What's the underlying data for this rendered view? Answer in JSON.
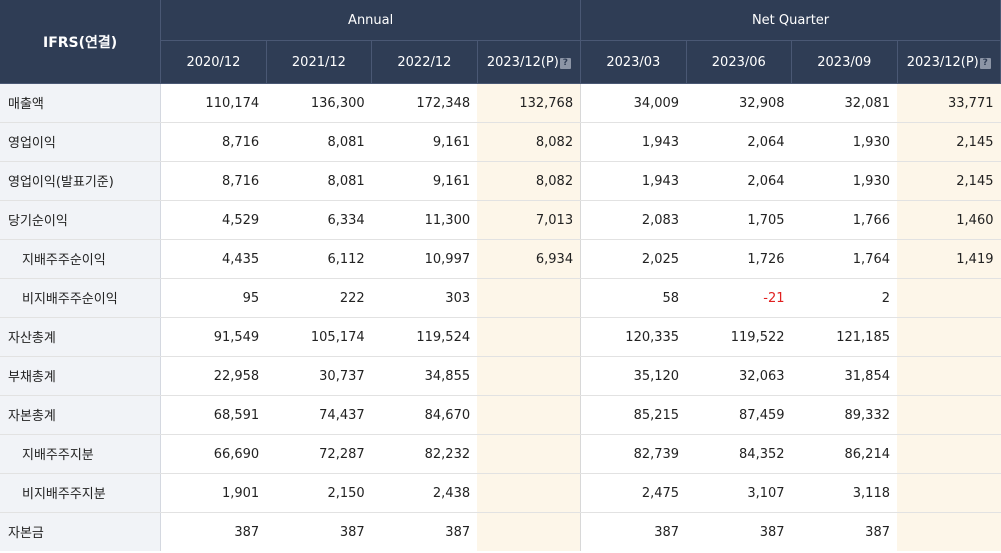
{
  "header": {
    "ifrs_label": "IFRS(연결)",
    "annual_label": "Annual",
    "quarter_label": "Net Quarter",
    "annual_periods": [
      "2020/12",
      "2021/12",
      "2022/12",
      "2023/12(P)"
    ],
    "quarter_periods": [
      "2023/03",
      "2023/06",
      "2023/09",
      "2023/12(P)"
    ],
    "help_icon": "?"
  },
  "rows": [
    {
      "label": "매출액",
      "values": [
        "110,174",
        "136,300",
        "172,348",
        "132,768",
        "34,009",
        "32,908",
        "32,081",
        "33,771"
      ]
    },
    {
      "label": "영업이익",
      "values": [
        "8,716",
        "8,081",
        "9,161",
        "8,082",
        "1,943",
        "2,064",
        "1,930",
        "2,145"
      ]
    },
    {
      "label": "영업이익(발표기준)",
      "values": [
        "8,716",
        "8,081",
        "9,161",
        "8,082",
        "1,943",
        "2,064",
        "1,930",
        "2,145"
      ]
    },
    {
      "label": "당기순이익",
      "values": [
        "4,529",
        "6,334",
        "11,300",
        "7,013",
        "2,083",
        "1,705",
        "1,766",
        "1,460"
      ]
    },
    {
      "label": "지배주주순이익",
      "values": [
        "4,435",
        "6,112",
        "10,997",
        "6,934",
        "2,025",
        "1,726",
        "1,764",
        "1,419"
      ]
    },
    {
      "label": "비지배주주순이익",
      "values": [
        "95",
        "222",
        "303",
        "",
        "58",
        "-21",
        "2",
        ""
      ]
    },
    {
      "label": "자산총계",
      "values": [
        "91,549",
        "105,174",
        "119,524",
        "",
        "120,335",
        "119,522",
        "121,185",
        ""
      ]
    },
    {
      "label": "부채총계",
      "values": [
        "22,958",
        "30,737",
        "34,855",
        "",
        "35,120",
        "32,063",
        "31,854",
        ""
      ]
    },
    {
      "label": "자본총계",
      "values": [
        "68,591",
        "74,437",
        "84,670",
        "",
        "85,215",
        "87,459",
        "89,332",
        ""
      ]
    },
    {
      "label": "지배주주지분",
      "values": [
        "66,690",
        "72,287",
        "82,232",
        "",
        "82,739",
        "84,352",
        "86,214",
        ""
      ]
    },
    {
      "label": "비지배주주지분",
      "values": [
        "1,901",
        "2,150",
        "2,438",
        "",
        "2,475",
        "3,107",
        "3,118",
        ""
      ]
    },
    {
      "label": "자본금",
      "values": [
        "387",
        "387",
        "387",
        "",
        "387",
        "387",
        "387",
        ""
      ]
    }
  ],
  "colors": {
    "header_bg": "#2f3d55",
    "label_bg": "#f1f3f7",
    "projection_bg": "#fdf6e9",
    "negative": "#e02020"
  }
}
